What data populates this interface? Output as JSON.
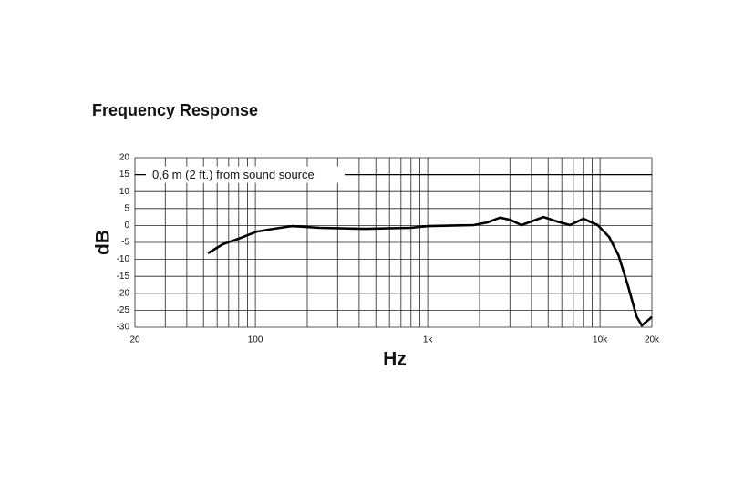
{
  "chart_data": {
    "type": "line",
    "title": "Frequency Response",
    "xlabel": "Hz",
    "ylabel": "dB",
    "annotation": {
      "text": "0,6 m (2 ft.) from sound source",
      "y": 15
    },
    "xscale": "log",
    "grid": true,
    "xlim": [
      20,
      20000
    ],
    "ylim": [
      -30,
      20
    ],
    "xticks": [
      20,
      100,
      {
        "value": 1000,
        "label": "1k"
      },
      {
        "value": 10000,
        "label": "10k"
      },
      {
        "value": 20000,
        "label": "20k"
      }
    ],
    "x_minor_grid": [
      30,
      40,
      50,
      60,
      70,
      80,
      90,
      200,
      300,
      400,
      500,
      600,
      700,
      800,
      900,
      2000,
      3000,
      4000,
      5000,
      6000,
      7000,
      8000,
      9000
    ],
    "yticks": [
      20,
      15,
      10,
      5,
      0,
      -5,
      -10,
      -15,
      -20,
      -25,
      -30
    ],
    "series": [
      {
        "color": "#000000",
        "x": [
          53,
          65,
          80,
          102,
          127,
          163,
          237,
          433,
          795,
          1006,
          1843,
          2213,
          2630,
          3000,
          3500,
          4700,
          5600,
          6700,
          8000,
          9700,
          11300,
          12800,
          14500,
          16300,
          17500,
          20000
        ],
        "values": [
          -8.2,
          -5.5,
          -3.9,
          -1.8,
          -1,
          -0.2,
          -0.7,
          -1,
          -0.7,
          -0.2,
          0.1,
          0.9,
          2.3,
          1.7,
          0.1,
          2.5,
          1.2,
          0.1,
          2,
          0.1,
          -3.4,
          -8.8,
          -17.6,
          -26.8,
          -29.5,
          -27
        ]
      }
    ]
  }
}
